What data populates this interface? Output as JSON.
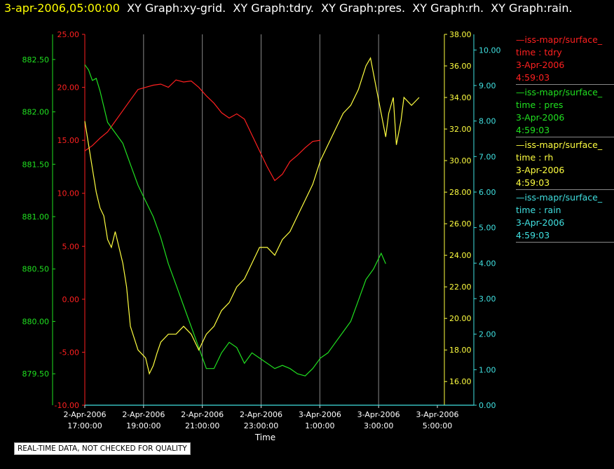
{
  "header": {
    "timestamp": "3-apr-2006,05:00:00",
    "graphs": [
      "XY Graph:xy-grid.",
      "XY Graph:tdry.",
      "XY Graph:pres.",
      "XY Graph:rh.",
      "XY Graph:rain."
    ]
  },
  "notice": "REAL-TIME DATA, NOT CHECKED FOR QUALITY",
  "legend": [
    {
      "source": "—iss-mapr/surface_",
      "var": "time : tdry",
      "date": "3-Apr-2006",
      "time": "4:59:03",
      "color": "#ff2020"
    },
    {
      "source": "—iss-mapr/surface_",
      "var": "time : pres",
      "date": "3-Apr-2006",
      "time": "4:59:03",
      "color": "#20e020"
    },
    {
      "source": "—iss-mapr/surface_",
      "var": "time : rh",
      "date": "3-Apr-2006",
      "time": "4:59:03",
      "color": "#ffff40"
    },
    {
      "source": "—iss-mapr/surface_",
      "var": "time : rain",
      "date": "3-Apr-2006",
      "time": "4:59:03",
      "color": "#40e0e0"
    }
  ],
  "chart_data": {
    "type": "line",
    "xlabel": "Time",
    "x_ticks": [
      {
        "date": "2-Apr-2006",
        "time": "17:00:00"
      },
      {
        "date": "2-Apr-2006",
        "time": "19:00:00"
      },
      {
        "date": "2-Apr-2006",
        "time": "21:00:00"
      },
      {
        "date": "2-Apr-2006",
        "time": "23:00:00"
      },
      {
        "date": "3-Apr-2006",
        "time": "1:00:00"
      },
      {
        "date": "3-Apr-2006",
        "time": "3:00:00"
      },
      {
        "date": "3-Apr-2006",
        "time": "5:00:00"
      }
    ],
    "x_range": [
      "2-Apr-2006 17:00:00",
      "3-Apr-2006 5:00:00"
    ],
    "axes": {
      "tdry": {
        "range": [
          -10,
          25
        ],
        "ticks": [
          "25.00",
          "20.00",
          "15.00",
          "10.00",
          "5.00",
          "0.00",
          "-5.00",
          "-10.00"
        ],
        "color": "#ff2020"
      },
      "pres": {
        "range": [
          879.2,
          882.74
        ],
        "ticks": [
          "882.50",
          "882.00",
          "881.50",
          "881.00",
          "880.50",
          "880.00",
          "879.50"
        ],
        "color": "#20e020"
      },
      "rh": {
        "range": [
          14.5,
          38
        ],
        "ticks": [
          "38.00",
          "36.00",
          "34.00",
          "32.00",
          "30.00",
          "28.00",
          "26.00",
          "24.00",
          "22.00",
          "20.00",
          "18.00",
          "16.00"
        ],
        "color": "#ffff40"
      },
      "rain": {
        "range": [
          0,
          10.44
        ],
        "ticks": [
          "10.00",
          "9.00",
          "8.00",
          "7.00",
          "6.00",
          "5.00",
          "4.00",
          "3.00",
          "2.00",
          "1.00",
          "0.00"
        ],
        "color": "#40e0e0"
      }
    },
    "series": [
      {
        "name": "time : tdry",
        "axis": "tdry",
        "color": "#ff2020",
        "points": [
          [
            0,
            14.0
          ],
          [
            0.5,
            14.5
          ],
          [
            1,
            15.2
          ],
          [
            1.5,
            15.8
          ],
          [
            2,
            16.8
          ],
          [
            2.5,
            17.8
          ],
          [
            3,
            18.8
          ],
          [
            3.5,
            19.8
          ],
          [
            4,
            20.0
          ],
          [
            4.5,
            20.2
          ],
          [
            5,
            20.3
          ],
          [
            5.5,
            20.0
          ],
          [
            6,
            20.7
          ],
          [
            6.5,
            20.5
          ],
          [
            7,
            20.6
          ],
          [
            7.5,
            20.0
          ],
          [
            8,
            19.2
          ],
          [
            8.5,
            18.5
          ],
          [
            9,
            17.6
          ],
          [
            9.5,
            17.1
          ],
          [
            10,
            17.5
          ],
          [
            10.5,
            17.0
          ],
          [
            11,
            15.5
          ],
          [
            11.5,
            14.0
          ],
          [
            12,
            12.5
          ],
          [
            12.5,
            11.2
          ],
          [
            13,
            11.8
          ],
          [
            13.5,
            13.0
          ],
          [
            14,
            13.6
          ],
          [
            14.5,
            14.3
          ],
          [
            15,
            14.9
          ],
          [
            15.5,
            15.0
          ]
        ]
      },
      {
        "name": "time : pres",
        "axis": "pres",
        "color": "#20e020",
        "points": [
          [
            0,
            882.45
          ],
          [
            0.25,
            882.4
          ],
          [
            0.5,
            882.3
          ],
          [
            0.75,
            882.32
          ],
          [
            1,
            882.2
          ],
          [
            1.25,
            882.05
          ],
          [
            1.5,
            881.9
          ],
          [
            1.75,
            881.85
          ],
          [
            2,
            881.8
          ],
          [
            2.5,
            881.7
          ],
          [
            3,
            881.5
          ],
          [
            3.5,
            881.3
          ],
          [
            4,
            881.15
          ],
          [
            4.5,
            881.0
          ],
          [
            5,
            880.8
          ],
          [
            5.5,
            880.55
          ],
          [
            6,
            880.35
          ],
          [
            6.5,
            880.15
          ],
          [
            7,
            879.95
          ],
          [
            7.5,
            879.75
          ],
          [
            8,
            879.55
          ],
          [
            8.5,
            879.55
          ],
          [
            9,
            879.7
          ],
          [
            9.5,
            879.8
          ],
          [
            10,
            879.75
          ],
          [
            10.5,
            879.6
          ],
          [
            11,
            879.7
          ],
          [
            11.5,
            879.65
          ],
          [
            12,
            879.6
          ],
          [
            12.5,
            879.55
          ],
          [
            13,
            879.58
          ],
          [
            13.5,
            879.55
          ],
          [
            14,
            879.5
          ],
          [
            14.5,
            879.48
          ],
          [
            15,
            879.55
          ],
          [
            15.5,
            879.65
          ],
          [
            16,
            879.7
          ],
          [
            16.5,
            879.8
          ],
          [
            17,
            879.9
          ],
          [
            17.5,
            880.0
          ],
          [
            18,
            880.2
          ],
          [
            18.5,
            880.4
          ],
          [
            19,
            880.5
          ],
          [
            19.5,
            880.65
          ],
          [
            19.8,
            880.55
          ]
        ]
      },
      {
        "name": "time : rh",
        "axis": "rh",
        "color": "#ffff40",
        "points": [
          [
            0,
            32.5
          ],
          [
            0.25,
            31.0
          ],
          [
            0.5,
            29.5
          ],
          [
            0.75,
            28.0
          ],
          [
            1,
            27.0
          ],
          [
            1.25,
            26.5
          ],
          [
            1.5,
            25.0
          ],
          [
            1.75,
            24.5
          ],
          [
            2,
            25.5
          ],
          [
            2.25,
            24.5
          ],
          [
            2.5,
            23.5
          ],
          [
            2.75,
            22.0
          ],
          [
            3,
            19.5
          ],
          [
            3.5,
            18.0
          ],
          [
            4,
            17.5
          ],
          [
            4.25,
            16.5
          ],
          [
            4.5,
            17.0
          ],
          [
            4.75,
            17.8
          ],
          [
            5,
            18.5
          ],
          [
            5.5,
            19.0
          ],
          [
            6,
            19.0
          ],
          [
            6.5,
            19.5
          ],
          [
            7,
            19.0
          ],
          [
            7.5,
            18.0
          ],
          [
            8,
            19.0
          ],
          [
            8.5,
            19.5
          ],
          [
            9,
            20.5
          ],
          [
            9.5,
            21.0
          ],
          [
            10,
            22.0
          ],
          [
            10.5,
            22.5
          ],
          [
            11,
            23.5
          ],
          [
            11.5,
            24.5
          ],
          [
            12,
            24.5
          ],
          [
            12.5,
            24.0
          ],
          [
            13,
            25.0
          ],
          [
            13.5,
            25.5
          ],
          [
            14,
            26.5
          ],
          [
            14.5,
            27.5
          ],
          [
            15,
            28.5
          ],
          [
            15.5,
            30.0
          ],
          [
            16,
            31.0
          ],
          [
            16.5,
            32.0
          ],
          [
            17,
            33.0
          ],
          [
            17.5,
            33.5
          ],
          [
            18,
            34.5
          ],
          [
            18.5,
            36.0
          ],
          [
            18.8,
            36.5
          ],
          [
            19,
            35.5
          ],
          [
            19.5,
            33.0
          ],
          [
            19.8,
            31.5
          ],
          [
            20,
            33.0
          ],
          [
            20.3,
            34.0
          ],
          [
            20.5,
            31.0
          ],
          [
            20.8,
            32.5
          ],
          [
            21,
            34.0
          ],
          [
            21.5,
            33.5
          ],
          [
            22,
            34.0
          ]
        ]
      },
      {
        "name": "time : rain",
        "axis": "rain",
        "color": "#40e0e0",
        "points": [
          [
            0,
            0.0
          ],
          [
            23.2,
            0.0
          ]
        ]
      }
    ],
    "grid": "vertical",
    "legend_placement": "right"
  }
}
